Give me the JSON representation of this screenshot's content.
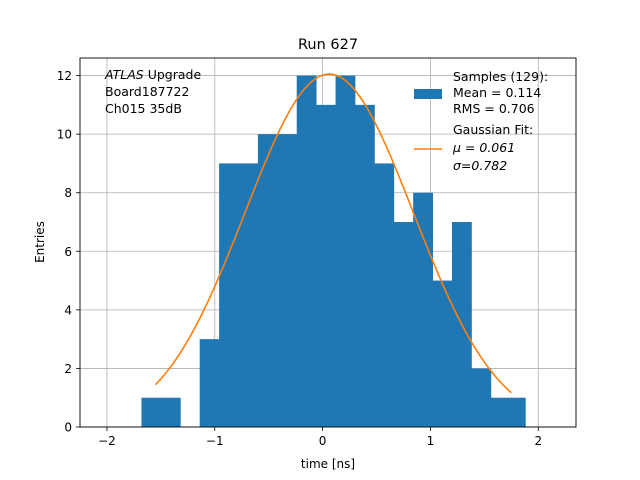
{
  "chart_data": {
    "type": "bar",
    "title": "Run 627",
    "xlabel": "time [ns]",
    "ylabel": "Entries",
    "xlim": [
      -2.25,
      2.35
    ],
    "ylim": [
      0,
      12.6
    ],
    "x_ticks": [
      -2,
      -1,
      0,
      1,
      2
    ],
    "x_tick_labels": [
      "−2",
      "−1",
      "0",
      "1",
      "2"
    ],
    "y_ticks": [
      0,
      2,
      4,
      6,
      8,
      10,
      12
    ],
    "y_tick_labels": [
      "0",
      "2",
      "4",
      "6",
      "8",
      "10",
      "12"
    ],
    "grid": true,
    "bar_color": "#1f77b4",
    "fit_color": "#ff7f0e",
    "histogram": {
      "bin_edges": [
        -1.68,
        -1.5,
        -1.32,
        -1.14,
        -0.96,
        -0.78,
        -0.6,
        -0.42,
        -0.24,
        -0.06,
        0.12,
        0.3,
        0.48,
        0.66,
        0.84,
        1.02,
        1.2,
        1.38,
        1.56,
        1.74,
        1.88
      ],
      "counts": [
        1,
        1,
        0,
        3,
        9,
        9,
        10,
        10,
        12,
        11,
        12,
        11,
        9,
        7,
        8,
        5,
        7,
        2,
        1,
        1
      ]
    },
    "fit": {
      "x_range": [
        -1.55,
        1.75
      ],
      "mu": 0.061,
      "sigma": 0.782,
      "amplitude": 12.05
    },
    "annotation": {
      "italic": "ATLAS",
      "line1_rest": " Upgrade",
      "line2": " Board187722",
      "line3": " Ch015 35dB"
    },
    "legend": {
      "placement": "top-right",
      "samples_title": "Samples (129):",
      "samples_mean": " Mean = 0.114",
      "samples_rms": " RMS = 0.706",
      "fit_title": "Gaussian Fit:",
      "fit_mu": " μ = 0.061",
      "fit_sigma": " σ=0.782"
    }
  }
}
